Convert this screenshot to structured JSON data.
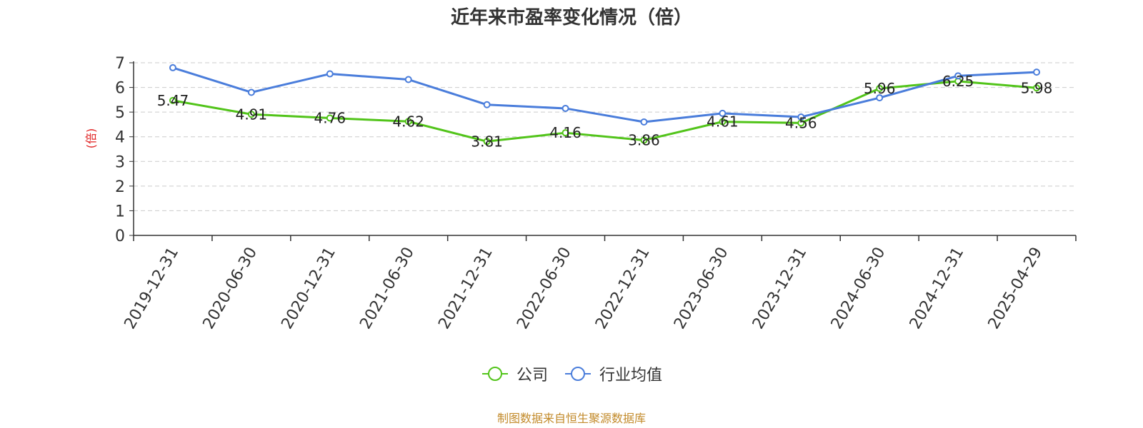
{
  "chart_data": {
    "type": "line",
    "title": "近年来市盈率变化情况（倍）",
    "ylabel": "(倍)",
    "xlabel": "",
    "categories": [
      "2019-12-31",
      "2020-06-30",
      "2020-12-31",
      "2021-06-30",
      "2021-12-31",
      "2022-06-30",
      "2022-12-31",
      "2023-06-30",
      "2023-12-31",
      "2024-06-30",
      "2024-12-31",
      "2025-04-29"
    ],
    "ylim": [
      0,
      7
    ],
    "yticks": [
      0,
      1,
      2,
      3,
      4,
      5,
      6,
      7
    ],
    "grid": true,
    "legend_position": "bottom",
    "series": [
      {
        "name": "公司",
        "color": "#52c41a",
        "values": [
          5.47,
          4.91,
          4.76,
          4.62,
          3.81,
          4.16,
          3.86,
          4.61,
          4.56,
          5.96,
          6.25,
          5.98
        ],
        "labels": [
          "5.47",
          "4.91",
          "4.76",
          "4.62",
          "3.81",
          "4.16",
          "3.86",
          "4.61",
          "4.56",
          "5.96",
          "6.25",
          "5.98"
        ]
      },
      {
        "name": "行业均值",
        "color": "#4a7ddb",
        "values": [
          6.8,
          5.8,
          6.55,
          6.32,
          5.3,
          5.15,
          4.6,
          4.95,
          4.8,
          5.58,
          6.47,
          6.62
        ]
      }
    ]
  },
  "source": "制图数据来自恒生聚源数据库",
  "ylabel_color": "#e02020"
}
